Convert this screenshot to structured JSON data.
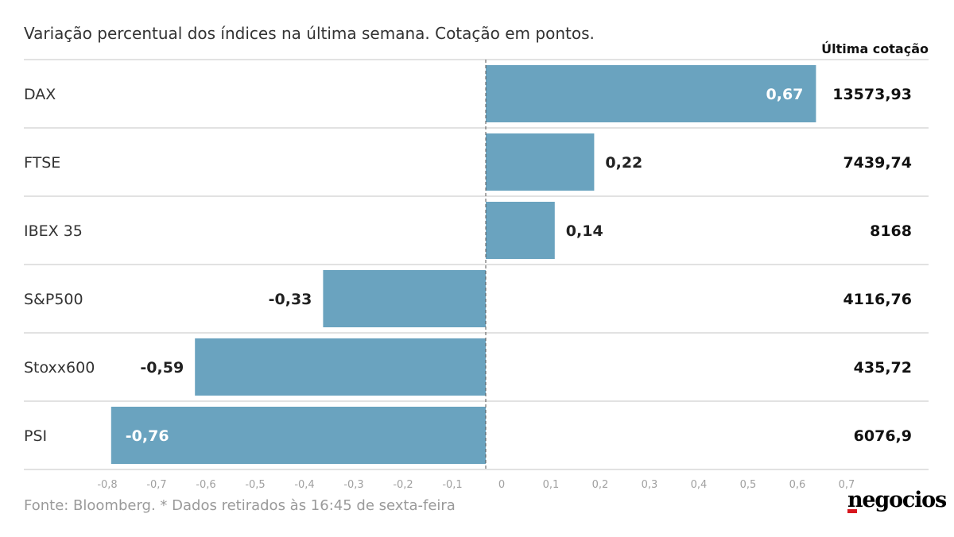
{
  "chart_data": {
    "type": "bar",
    "orientation": "horizontal",
    "title": "Variação percentual dos índices na última semana. Cotação em pontos.",
    "categories": [
      "DAX",
      "FTSE",
      "IBEX 35",
      "S&P500",
      "Stoxx600",
      "PSI"
    ],
    "values": [
      0.67,
      0.22,
      0.14,
      -0.33,
      -0.59,
      -0.76
    ],
    "value_labels": [
      "0,67",
      "0,22",
      "0,14",
      "-0,33",
      "-0,59",
      "-0,76"
    ],
    "last_quote_header": "Última cotação",
    "last_quotes": [
      "13573,93",
      "7439,74",
      "8168",
      "4116,76",
      "435,72",
      "6076,9"
    ],
    "xlim": [
      -0.8,
      0.7
    ],
    "x_ticks": [
      -0.8,
      -0.7,
      -0.6,
      -0.5,
      -0.4,
      -0.3,
      -0.2,
      -0.1,
      0,
      0.1,
      0.2,
      0.3,
      0.4,
      0.5,
      0.6,
      0.7
    ],
    "x_tick_labels": [
      "-0,8",
      "-0,7",
      "-0,6",
      "-0,5",
      "-0,4",
      "-0,3",
      "-0,2",
      "-0,1",
      "0",
      "0,1",
      "0,2",
      "0,3",
      "0,4",
      "0,5",
      "0,6",
      "0,7"
    ],
    "bar_color": "#6aa3bf",
    "grid": false
  },
  "footer": {
    "source": "Fonte: Bloomberg.  * Dados retirados às 16:45 de sexta-feira",
    "brand": "negocios",
    "brand_accent_color": "#d7161e"
  }
}
